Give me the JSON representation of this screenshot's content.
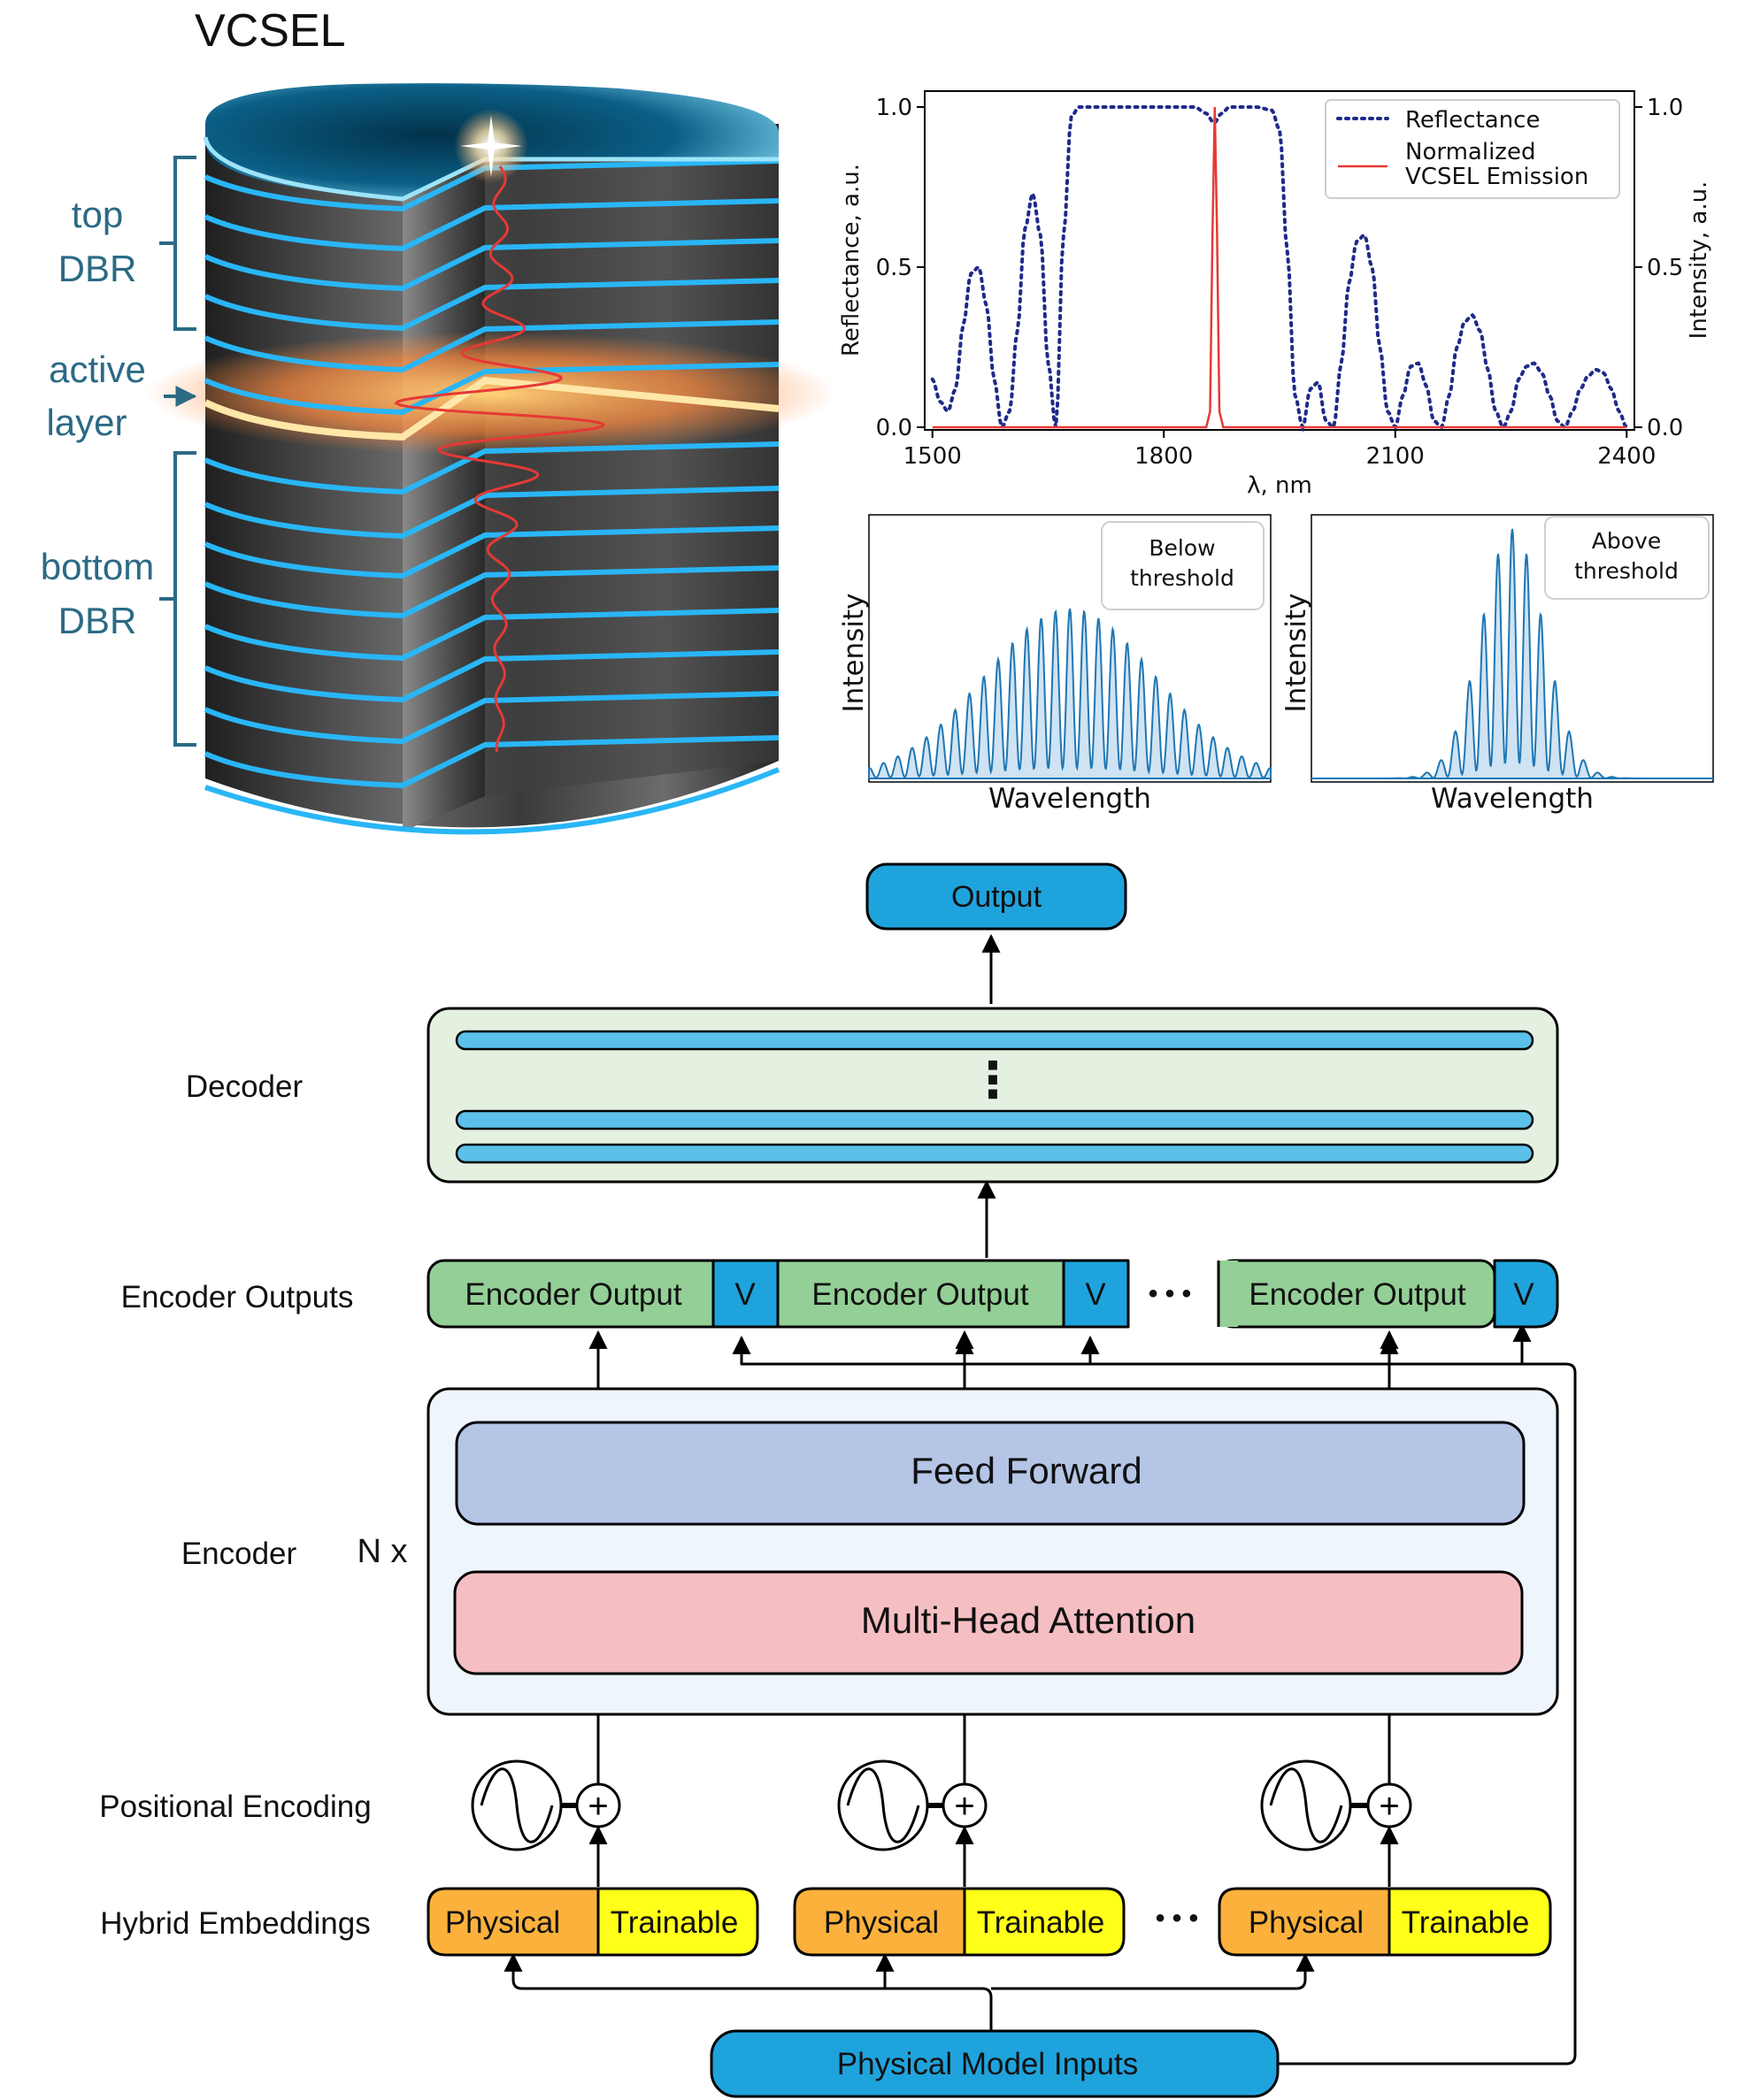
{
  "vcsel": {
    "title": "VCSEL",
    "labels": {
      "top_dbr_1": "top",
      "top_dbr_2": "DBR",
      "active_1": "active",
      "active_2": "layer",
      "bottom_dbr_1": "bottom",
      "bottom_dbr_2": "DBR"
    },
    "colors": {
      "label": "#2b6a85",
      "layer_line": "#29b6f6",
      "body": "#3c3c3c",
      "active_glow": "#ff8a3d",
      "field": "#e53935"
    }
  },
  "chart_data": [
    {
      "type": "line",
      "title": "",
      "xlabel": "λ, nm",
      "ylabel": "Reflectance, a.u.",
      "y2label": "Intensity, a.u.",
      "xlim": [
        1490,
        2410
      ],
      "ylim": [
        0,
        1
      ],
      "xticks": [
        "1500",
        "1800",
        "2100",
        "2400"
      ],
      "yticks": [
        "0.0",
        "0.5",
        "1.0"
      ],
      "y2ticks": [
        "0.0",
        "0.5",
        "1.0"
      ],
      "legend_position": "top-right",
      "legend": [
        "Reflectance",
        "Normalized",
        "VCSEL Emission"
      ],
      "series": [
        {
          "name": "Reflectance",
          "style": "dotted",
          "color": "#1f2a8a",
          "x": [
            1500,
            1510,
            1520,
            1530,
            1540,
            1550,
            1560,
            1570,
            1580,
            1590,
            1600,
            1610,
            1620,
            1630,
            1640,
            1650,
            1660,
            1670,
            1680,
            1690,
            1700,
            1720,
            1740,
            1760,
            1780,
            1800,
            1820,
            1840,
            1855,
            1865,
            1875,
            1885,
            1900,
            1920,
            1940,
            1950,
            1960,
            1970,
            1980,
            1990,
            2000,
            2010,
            2020,
            2030,
            2040,
            2050,
            2060,
            2070,
            2080,
            2090,
            2100,
            2110,
            2120,
            2130,
            2140,
            2150,
            2160,
            2170,
            2180,
            2190,
            2200,
            2210,
            2220,
            2230,
            2240,
            2250,
            2260,
            2270,
            2280,
            2290,
            2300,
            2310,
            2320,
            2330,
            2340,
            2350,
            2360,
            2370,
            2380,
            2390,
            2400
          ],
          "y": [
            0.15,
            0.08,
            0.05,
            0.12,
            0.32,
            0.48,
            0.5,
            0.38,
            0.15,
            0.0,
            0.05,
            0.3,
            0.62,
            0.73,
            0.6,
            0.2,
            0.0,
            0.6,
            0.97,
            1.0,
            1.0,
            1.0,
            1.0,
            1.0,
            1.0,
            1.0,
            1.0,
            1.0,
            0.98,
            0.95,
            0.98,
            1.0,
            1.0,
            1.0,
            0.99,
            0.93,
            0.55,
            0.1,
            0.0,
            0.12,
            0.14,
            0.02,
            0.0,
            0.2,
            0.45,
            0.58,
            0.6,
            0.5,
            0.25,
            0.05,
            0.0,
            0.1,
            0.19,
            0.2,
            0.13,
            0.02,
            0.0,
            0.1,
            0.25,
            0.33,
            0.35,
            0.3,
            0.18,
            0.05,
            0.0,
            0.05,
            0.15,
            0.19,
            0.2,
            0.17,
            0.1,
            0.02,
            0.0,
            0.05,
            0.12,
            0.16,
            0.18,
            0.17,
            0.12,
            0.05,
            0.0
          ]
        },
        {
          "name": "VCSEL Emission",
          "style": "solid",
          "color": "#e53935",
          "x": [
            1500,
            1855,
            1860,
            1863,
            1866,
            1869,
            1872,
            1877,
            2400
          ],
          "y": [
            0,
            0,
            0.05,
            0.6,
            1.0,
            0.6,
            0.05,
            0,
            0
          ]
        }
      ]
    },
    {
      "type": "line",
      "title": "",
      "xlabel": "Wavelength",
      "ylabel": "Intensity",
      "annotation": [
        "Below",
        "threshold"
      ],
      "envelope_width": 0.3,
      "fringes": 28,
      "color": "#1f77b4"
    },
    {
      "type": "line",
      "title": "",
      "xlabel": "Wavelength",
      "ylabel": "Intensity",
      "annotation": [
        "Above",
        "threshold"
      ],
      "envelope_width": 0.11,
      "fringes": 28,
      "color": "#1f77b4"
    }
  ],
  "transformer": {
    "output": "Output",
    "decoder_label": "Decoder",
    "decoder_dots": "⋮",
    "encoder_outputs_label": "Encoder Outputs",
    "encoder_output": "Encoder Output",
    "v": "V",
    "ellipsis": "• • •",
    "feed_forward": "Feed Forward",
    "mha": "Multi-Head Attention",
    "encoder_label": "Encoder",
    "nx": "N x",
    "positional_label": "Positional Encoding",
    "plus": "+",
    "hybrid_label": "Hybrid Embeddings",
    "physical": "Physical",
    "trainable": "Trainable",
    "inputs": "Physical Model Inputs",
    "colors": {
      "blue": "#1fa3dc",
      "decoder_bg": "#e4f1e1",
      "decoder_bar": "#5cc1ea",
      "green": "#93cf96",
      "encoder_bg": "#eef5fc",
      "ff": "#b4c5e6",
      "mha": "#f5bec3",
      "orange": "#fbb13c",
      "yellow": "#ffff1a"
    }
  }
}
